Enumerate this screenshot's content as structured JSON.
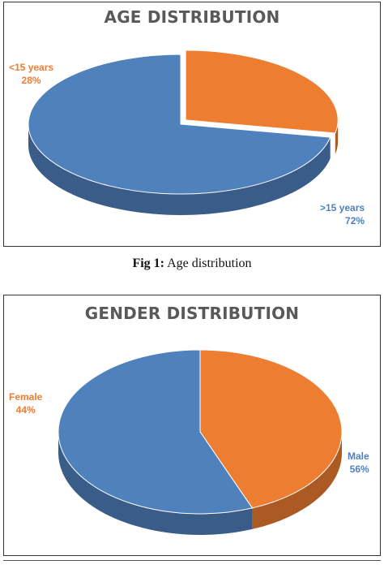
{
  "colors": {
    "blue": "#4f81bd",
    "orange": "#ed7d31",
    "title": "#595959"
  },
  "chart_data": [
    {
      "type": "pie",
      "title": "AGE DISTRIBUTION",
      "slices": [
        {
          "label": "<15 years",
          "value": 28,
          "value_label": "28%",
          "color": "#ed7d31"
        },
        {
          "label": ">15 years",
          "value": 72,
          "value_label": "72%",
          "color": "#4f81bd"
        }
      ]
    },
    {
      "type": "pie",
      "title": "GENDER DISTRIBUTION",
      "slices": [
        {
          "label": "Female",
          "value": 44,
          "value_label": "44%",
          "color": "#ed7d31"
        },
        {
          "label": "Male",
          "value": 56,
          "value_label": "56%",
          "color": "#4f81bd"
        }
      ]
    }
  ],
  "captions": [
    {
      "prefix": "Fig 1:",
      "text": "Age distribution"
    }
  ]
}
